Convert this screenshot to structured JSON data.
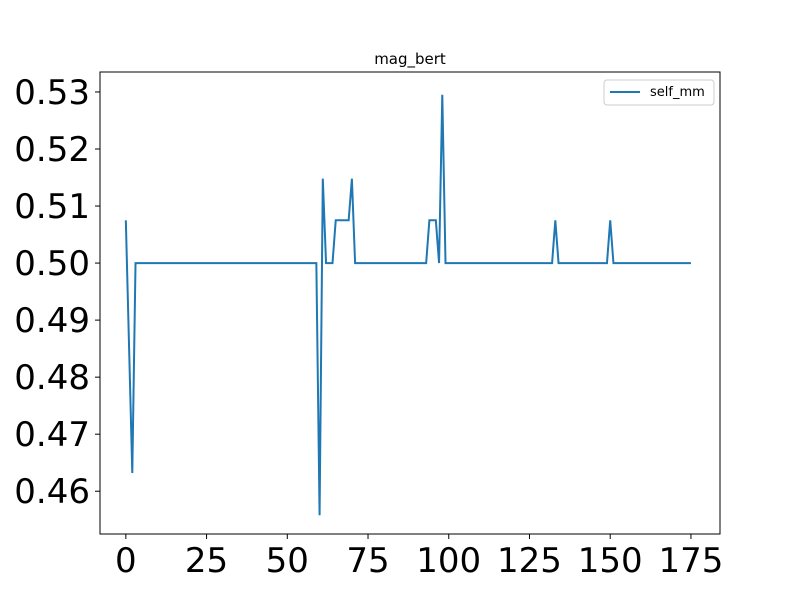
{
  "chart_data": {
    "type": "line",
    "title": "mag_bert",
    "xlabel": "",
    "ylabel": "",
    "xlim": [
      -8,
      184
    ],
    "ylim": [
      0.4525,
      0.5335
    ],
    "xticks": [
      0,
      25,
      50,
      75,
      100,
      125,
      150,
      175
    ],
    "xtick_labels": [
      "0",
      "25",
      "50",
      "75",
      "100",
      "125",
      "150",
      "175"
    ],
    "yticks": [
      0.46,
      0.47,
      0.48,
      0.49,
      0.5,
      0.51,
      0.52,
      0.53
    ],
    "ytick_labels": [
      "0.46",
      "0.47",
      "0.48",
      "0.49",
      "0.50",
      "0.51",
      "0.52",
      "0.53"
    ],
    "grid": false,
    "legend_position": "top-right",
    "series": [
      {
        "name": "self_mm",
        "color": "#1f77b4",
        "x": [
          0,
          2,
          3,
          4,
          59,
          60,
          61,
          62,
          63,
          64,
          65,
          66,
          67,
          68,
          69,
          70,
          71,
          72,
          93,
          94,
          95,
          96,
          97,
          98,
          99,
          100,
          132,
          133,
          134,
          135,
          149,
          150,
          151,
          152,
          175
        ],
        "y": [
          0.5075,
          0.4632,
          0.5,
          0.5,
          0.5,
          0.4558,
          0.5148,
          0.5,
          0.5,
          0.5,
          0.5075,
          0.5075,
          0.5075,
          0.5075,
          0.5075,
          0.5148,
          0.5,
          0.5,
          0.5,
          0.5075,
          0.5075,
          0.5075,
          0.5,
          0.5295,
          0.5,
          0.5,
          0.5,
          0.5075,
          0.5,
          0.5,
          0.5,
          0.5075,
          0.5,
          0.5,
          0.5
        ]
      }
    ]
  }
}
